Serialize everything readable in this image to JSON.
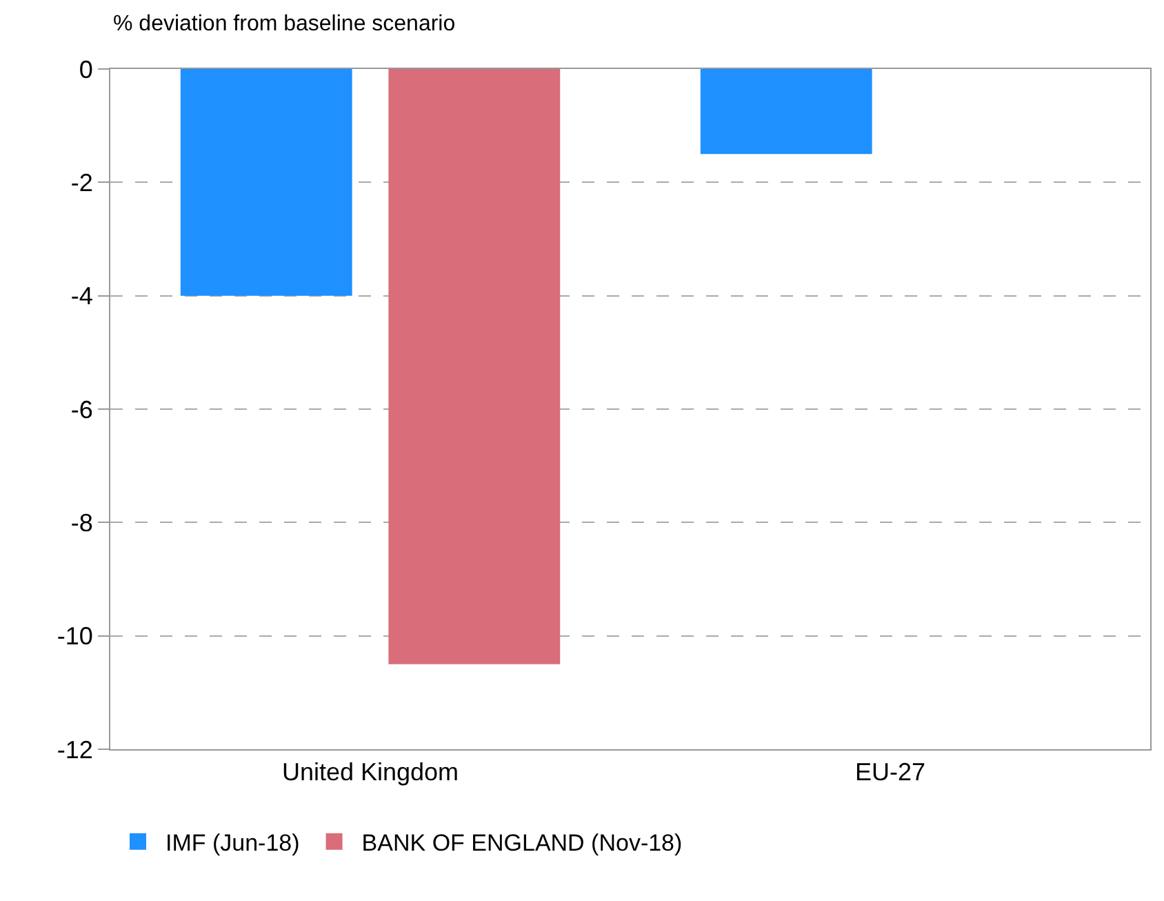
{
  "chart_data": {
    "type": "bar",
    "ylabel": "% deviation from baseline scenario",
    "categories": [
      "United Kingdom",
      "EU-27"
    ],
    "series": [
      {
        "name": "IMF (Jun-18)",
        "color": "#1e90ff",
        "values": [
          -4,
          -1.5
        ]
      },
      {
        "name": "BANK OF ENGLAND (Nov-18)",
        "color": "#d96d7a",
        "values": [
          -10.5,
          null
        ]
      }
    ],
    "ylim": [
      -12,
      0
    ],
    "yticks": [
      -12,
      -10,
      -8,
      -6,
      -4,
      -2,
      0
    ],
    "grid": "y",
    "legend": "bottom"
  }
}
